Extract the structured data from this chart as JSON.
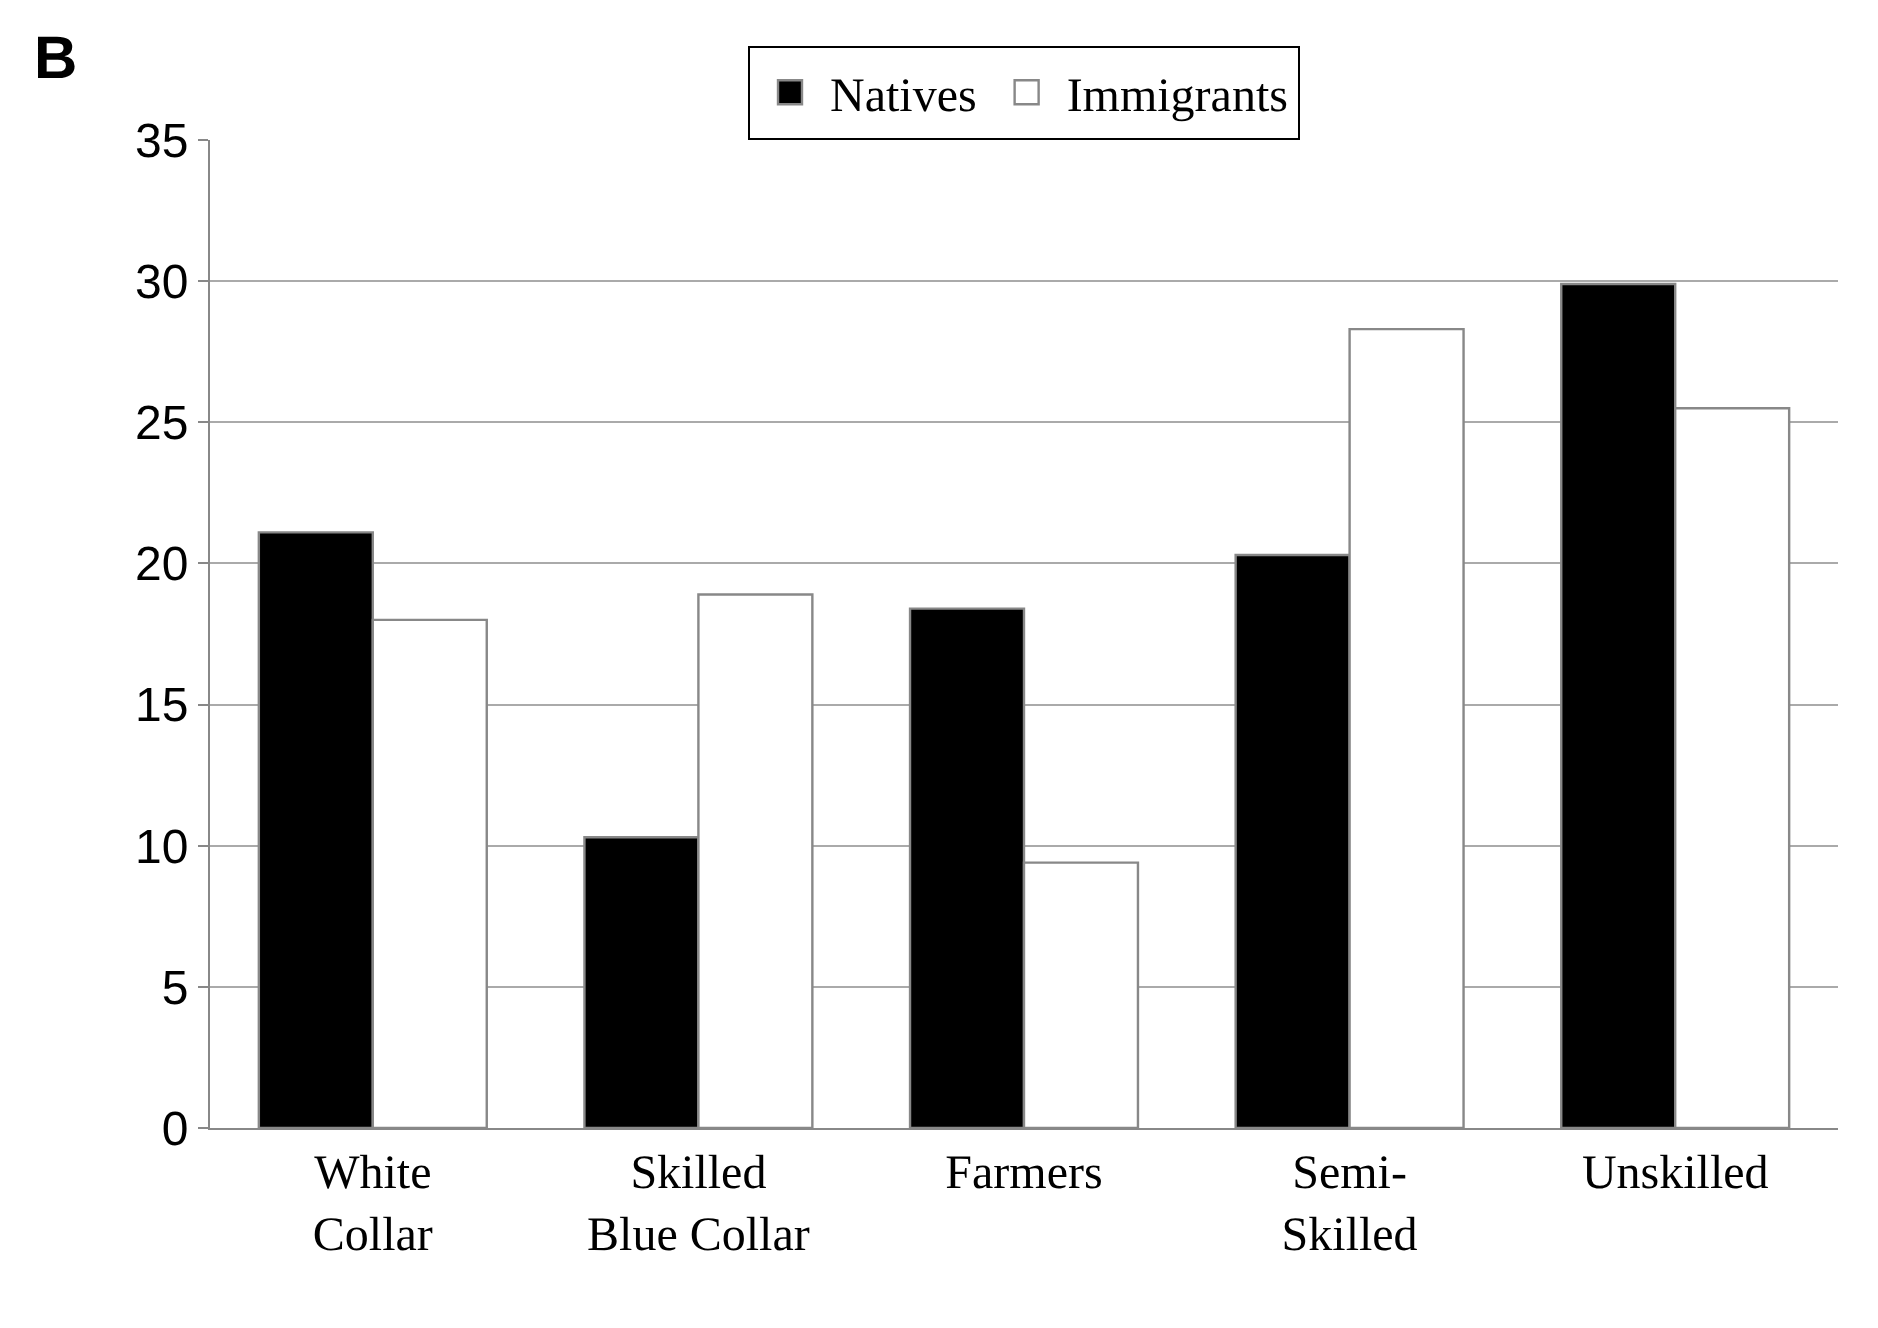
{
  "chart_data": {
    "type": "bar",
    "categories": [
      "White\nCollar",
      "Skilled\nBlue Collar",
      "Farmers",
      "Semi-\nSkilled",
      "Unskilled"
    ],
    "series": [
      {
        "name": "Natives",
        "color": "#000000",
        "values": [
          21.1,
          10.3,
          18.4,
          20.3,
          29.9
        ]
      },
      {
        "name": "Immigrants",
        "color": "#ffffff",
        "values": [
          18.0,
          18.9,
          9.4,
          28.3,
          25.5
        ]
      }
    ],
    "ylim": [
      0,
      35
    ],
    "yticks": [
      0,
      5,
      10,
      15,
      20,
      25,
      30,
      35
    ],
    "grid": "y",
    "legend": "top",
    "annotations": [
      "B"
    ]
  }
}
